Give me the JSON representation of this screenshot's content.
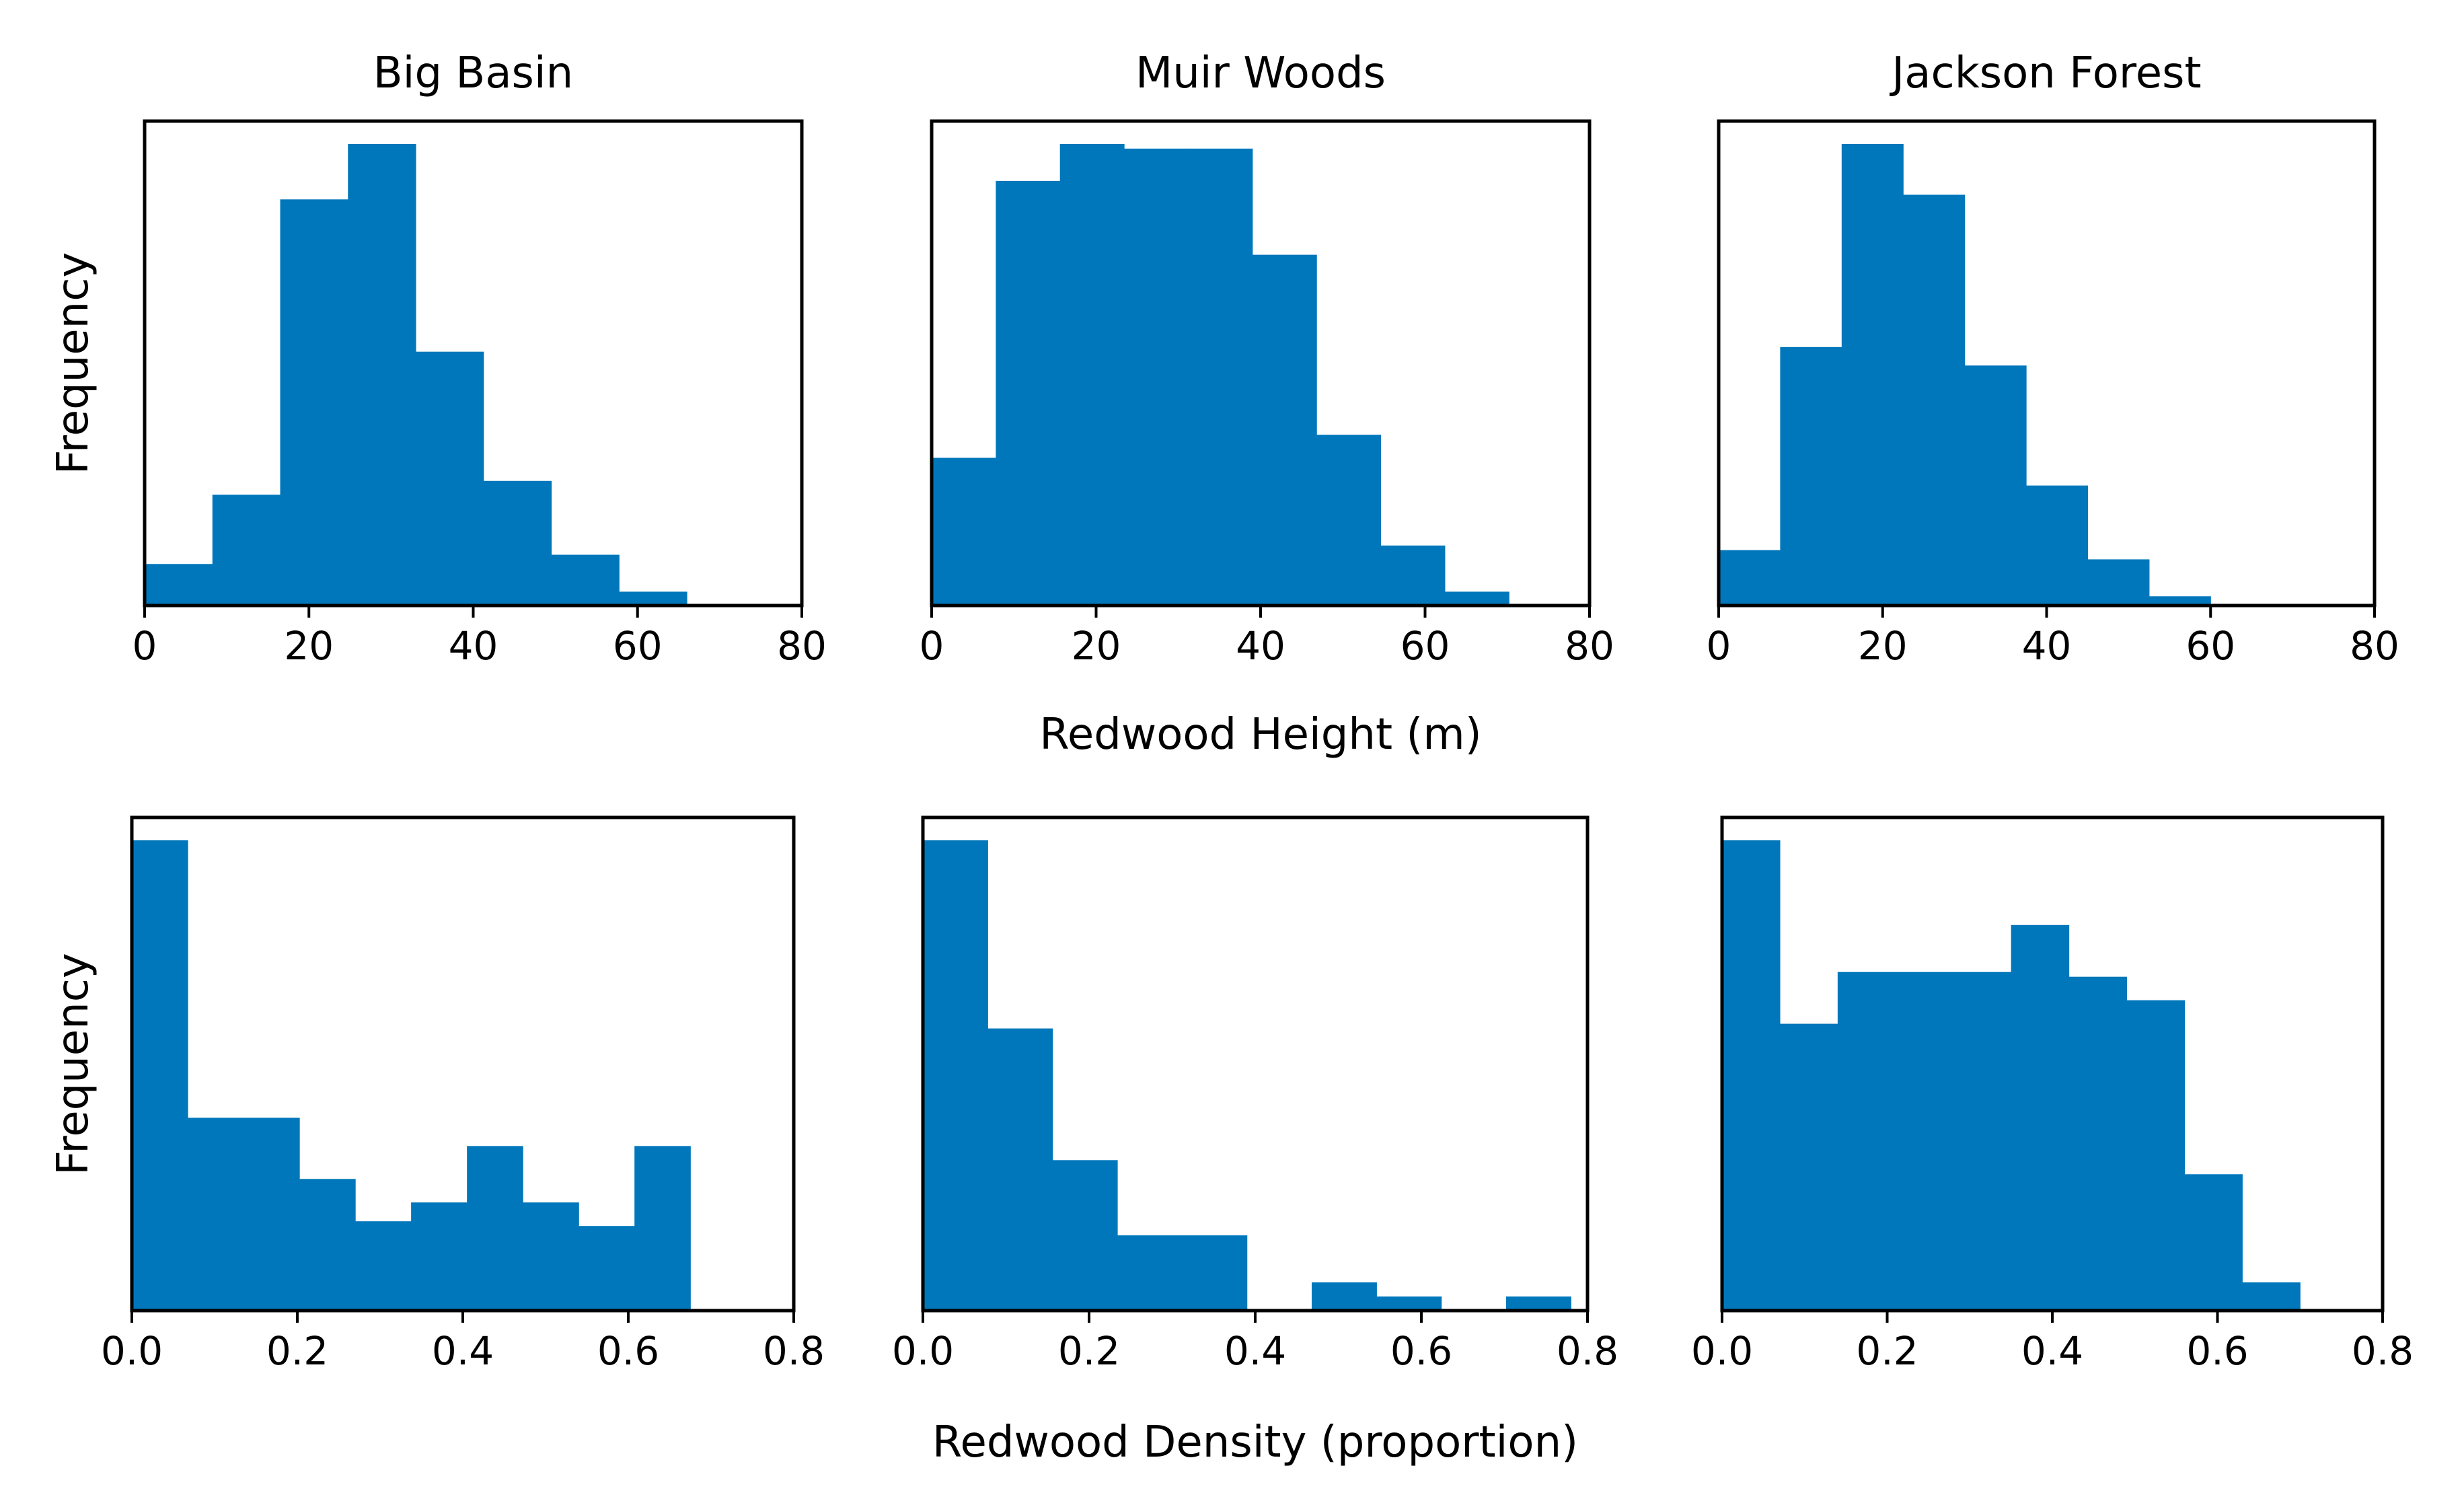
{
  "colors": {
    "bar": "#0077bb",
    "axis": "#000000",
    "text": "#000000"
  },
  "row_labels": {
    "height_xlabel": "Redwood Height (m)",
    "density_xlabel": "Redwood Density (proportion)"
  },
  "chart_data": [
    {
      "type": "bar",
      "title": "Big Basin",
      "xlabel": "",
      "ylabel": "Frequency",
      "xlim": [
        0,
        80
      ],
      "ylim": [
        0,
        1
      ],
      "xticks": [
        0,
        20,
        40,
        60,
        80
      ],
      "xtick_labels": [
        "0",
        "20",
        "40",
        "60",
        "80"
      ],
      "bin_edges": [
        0,
        8.25,
        16.5,
        24.75,
        33,
        41.25,
        49.5,
        57.75,
        66
      ],
      "values": [
        0.09,
        0.24,
        0.88,
        1.0,
        0.55,
        0.27,
        0.11,
        0.03
      ]
    },
    {
      "type": "bar",
      "title": "Muir Woods",
      "xlabel": "",
      "ylabel": "",
      "xlim": [
        0,
        80
      ],
      "ylim": [
        0,
        1
      ],
      "xticks": [
        0,
        20,
        40,
        60,
        80
      ],
      "xtick_labels": [
        "0",
        "20",
        "40",
        "60",
        "80"
      ],
      "bin_edges": [
        0,
        7.8,
        15.6,
        23.4,
        31.2,
        39,
        46.8,
        54.6,
        62.4,
        70.2
      ],
      "values": [
        0.32,
        0.92,
        1.0,
        0.99,
        0.99,
        0.76,
        0.37,
        0.13,
        0.03
      ]
    },
    {
      "type": "bar",
      "title": "Jackson Forest",
      "xlabel": "",
      "ylabel": "",
      "xlim": [
        0,
        80
      ],
      "ylim": [
        0,
        1
      ],
      "xticks": [
        0,
        20,
        40,
        60,
        80
      ],
      "xtick_labels": [
        "0",
        "20",
        "40",
        "60",
        "80"
      ],
      "bin_edges": [
        0,
        7.5,
        15,
        22.5,
        30,
        37.5,
        45,
        52.5,
        60
      ],
      "values": [
        0.12,
        0.56,
        1.0,
        0.89,
        0.52,
        0.26,
        0.1,
        0.02
      ]
    },
    {
      "type": "bar",
      "title": "",
      "xlabel": "",
      "ylabel": "Frequency",
      "xlim": [
        0,
        0.8
      ],
      "ylim": [
        0,
        1
      ],
      "xticks": [
        0,
        0.2,
        0.4,
        0.6,
        0.8
      ],
      "xtick_labels": [
        "0.0",
        "0.2",
        "0.4",
        "0.6",
        "0.8"
      ],
      "bin_edges": [
        0,
        0.0675,
        0.135,
        0.2025,
        0.27,
        0.3375,
        0.405,
        0.4725,
        0.54,
        0.6075,
        0.675
      ],
      "values": [
        1.0,
        0.41,
        0.41,
        0.28,
        0.19,
        0.23,
        0.35,
        0.23,
        0.18,
        0.35
      ]
    },
    {
      "type": "bar",
      "title": "",
      "xlabel": "",
      "ylabel": "",
      "xlim": [
        0,
        0.8
      ],
      "ylim": [
        0,
        1
      ],
      "xticks": [
        0,
        0.2,
        0.4,
        0.6,
        0.8
      ],
      "xtick_labels": [
        "0.0",
        "0.2",
        "0.4",
        "0.6",
        "0.8"
      ],
      "bin_edges": [
        0,
        0.078,
        0.156,
        0.234,
        0.312,
        0.39,
        0.468,
        0.546,
        0.624,
        0.702,
        0.78
      ],
      "values": [
        1.0,
        0.6,
        0.32,
        0.16,
        0.16,
        0,
        0.06,
        0.03,
        0,
        0.03
      ]
    },
    {
      "type": "bar",
      "title": "",
      "xlabel": "",
      "ylabel": "",
      "xlim": [
        0,
        0.8
      ],
      "ylim": [
        0,
        1
      ],
      "xticks": [
        0,
        0.2,
        0.4,
        0.6,
        0.8
      ],
      "xtick_labels": [
        "0.0",
        "0.2",
        "0.4",
        "0.6",
        "0.8"
      ],
      "bin_edges": [
        0,
        0.07,
        0.14,
        0.21,
        0.28,
        0.35,
        0.42,
        0.49,
        0.56,
        0.63,
        0.7
      ],
      "values": [
        1.0,
        0.61,
        0.72,
        0.72,
        0.72,
        0.82,
        0.71,
        0.66,
        0.29,
        0.06
      ]
    }
  ]
}
